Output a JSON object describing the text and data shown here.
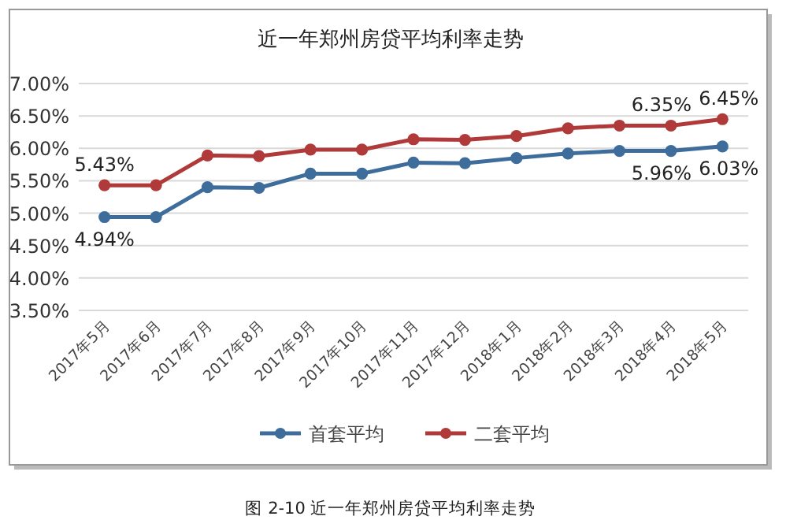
{
  "chart_data": {
    "type": "line",
    "title": "近一年郑州房贷平均利率走势",
    "categories": [
      "2017年5月",
      "2017年6月",
      "2017年7月",
      "2017年8月",
      "2017年9月",
      "2017年10月",
      "2017年11月",
      "2017年12月",
      "2018年1月",
      "2018年2月",
      "2018年3月",
      "2018年4月",
      "2018年5月"
    ],
    "series": [
      {
        "name": "首套平均",
        "color": "#3e6d9c",
        "values": [
          4.94,
          4.94,
          5.4,
          5.39,
          5.61,
          5.61,
          5.78,
          5.77,
          5.85,
          5.92,
          5.96,
          5.96,
          6.03
        ],
        "value_labels": [
          "4.94%",
          null,
          null,
          null,
          null,
          null,
          null,
          null,
          null,
          null,
          null,
          "5.96%",
          "6.03%"
        ]
      },
      {
        "name": "二套平均",
        "color": "#b03a3a",
        "values": [
          5.43,
          5.43,
          5.89,
          5.88,
          5.98,
          5.98,
          6.14,
          6.13,
          6.19,
          6.31,
          6.35,
          6.35,
          6.45
        ],
        "value_labels": [
          "5.43%",
          null,
          null,
          null,
          null,
          null,
          null,
          null,
          null,
          null,
          null,
          "6.35%",
          "6.45%"
        ]
      }
    ],
    "ylim": [
      3.5,
      7.0
    ],
    "yticks": [
      {
        "value": 3.5,
        "label": "3.50%"
      },
      {
        "value": 4.0,
        "label": "4.00%"
      },
      {
        "value": 4.5,
        "label": "4.50%"
      },
      {
        "value": 5.0,
        "label": "5.00%"
      },
      {
        "value": 5.5,
        "label": "5.50%"
      },
      {
        "value": 6.0,
        "label": "6.00%"
      },
      {
        "value": 6.5,
        "label": "6.50%"
      },
      {
        "value": 7.0,
        "label": "7.00%"
      }
    ],
    "grid": "y",
    "marker": "circle",
    "line_style": "solid",
    "legend": "bottom",
    "annotations": [
      "图 2-10 近一年郑州房贷平均利率走势"
    ]
  }
}
